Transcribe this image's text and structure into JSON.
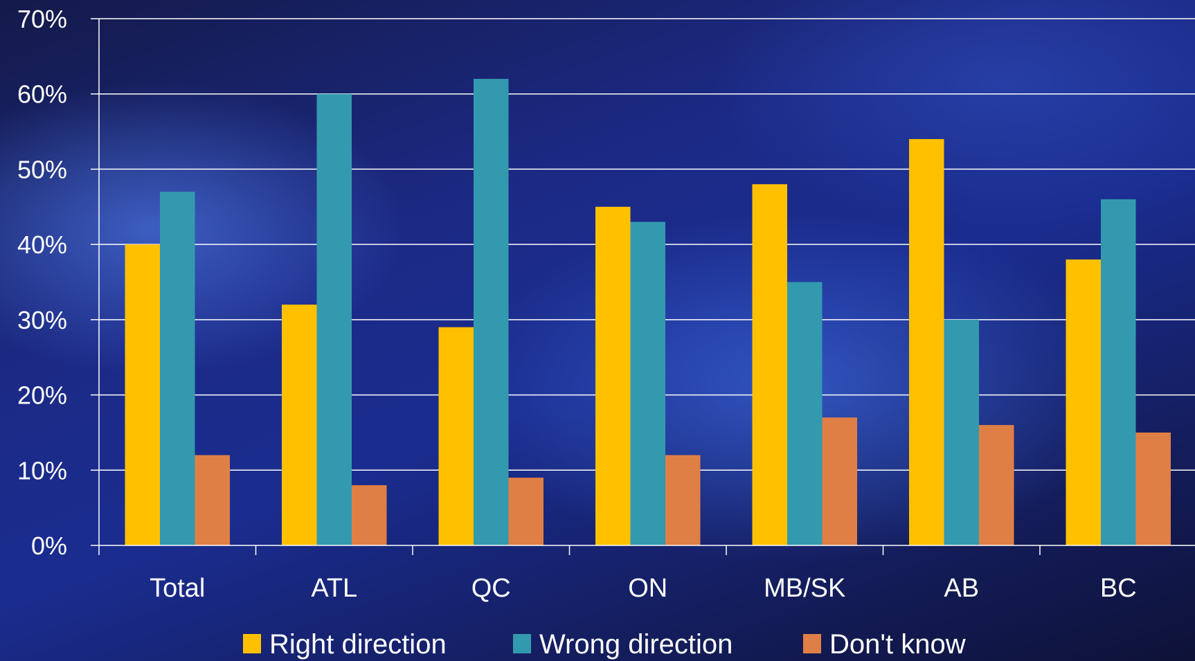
{
  "chart_data": {
    "type": "bar",
    "categories": [
      "Total",
      "ATL",
      "QC",
      "ON",
      "MB/SK",
      "AB",
      "BC"
    ],
    "series": [
      {
        "name": "Right direction",
        "color": "#FFC000",
        "values": [
          40,
          32,
          29,
          45,
          48,
          54,
          38
        ]
      },
      {
        "name": "Wrong direction",
        "color": "#3399AF",
        "values": [
          47,
          60,
          62,
          43,
          35,
          30,
          46
        ]
      },
      {
        "name": "Don't know",
        "color": "#E07F45",
        "values": [
          12,
          8,
          9,
          12,
          17,
          16,
          15
        ]
      }
    ],
    "ylim": [
      0,
      70
    ],
    "yticks": [
      "0%",
      "10%",
      "20%",
      "30%",
      "40%",
      "50%",
      "60%",
      "70%"
    ],
    "grid": true,
    "legend_position": "bottom"
  }
}
